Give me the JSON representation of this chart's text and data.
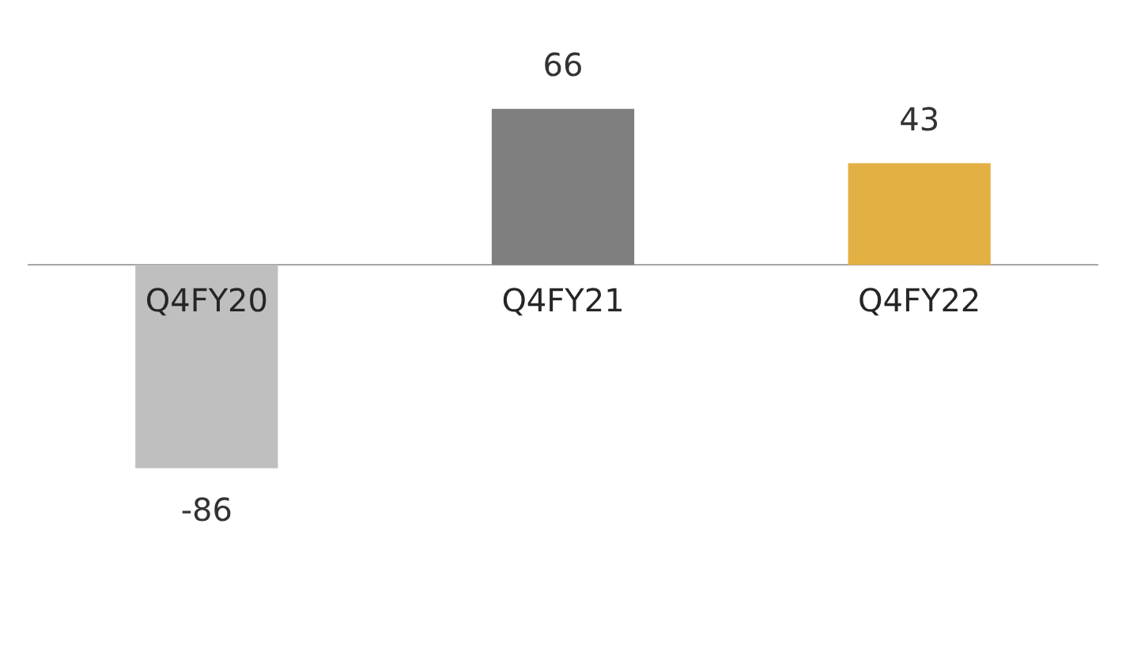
{
  "chart_data": {
    "type": "bar",
    "categories": [
      "Q4FY20",
      "Q4FY21",
      "Q4FY22"
    ],
    "values": [
      -86,
      66,
      43
    ],
    "colors": [
      "#bfbfbf",
      "#7f7f7f",
      "#e3b043"
    ],
    "data_labels": true,
    "grid": false,
    "legend": false
  }
}
